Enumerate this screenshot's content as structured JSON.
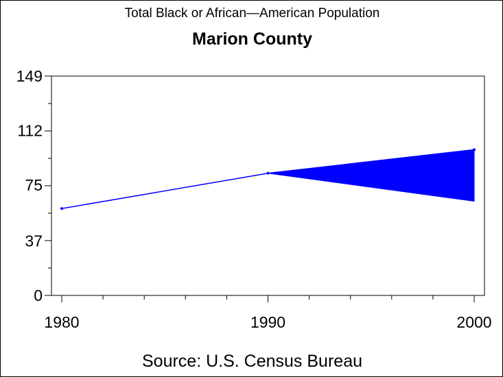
{
  "chart_data": {
    "type": "line",
    "title": "Total Black or African—American Population",
    "subtitle": "Marion County",
    "footnote": "Source: U.S. Census Bureau",
    "xlabel": "",
    "ylabel": "",
    "x": [
      1980,
      1990,
      2000
    ],
    "x_ticks": [
      "1980",
      "1990",
      "2000"
    ],
    "xlim": [
      1980,
      2000
    ],
    "y_ticks": [
      "0",
      "37",
      "75",
      "112",
      "149"
    ],
    "ylim": [
      0,
      149
    ],
    "grid": false,
    "series": [
      {
        "values": [
          59,
          83,
          99
        ],
        "color": "#0000ff"
      }
    ],
    "band": {
      "x": [
        1990,
        2000
      ],
      "upper": [
        83,
        99
      ],
      "lower": [
        83,
        64
      ],
      "color": "#0000ff"
    }
  }
}
